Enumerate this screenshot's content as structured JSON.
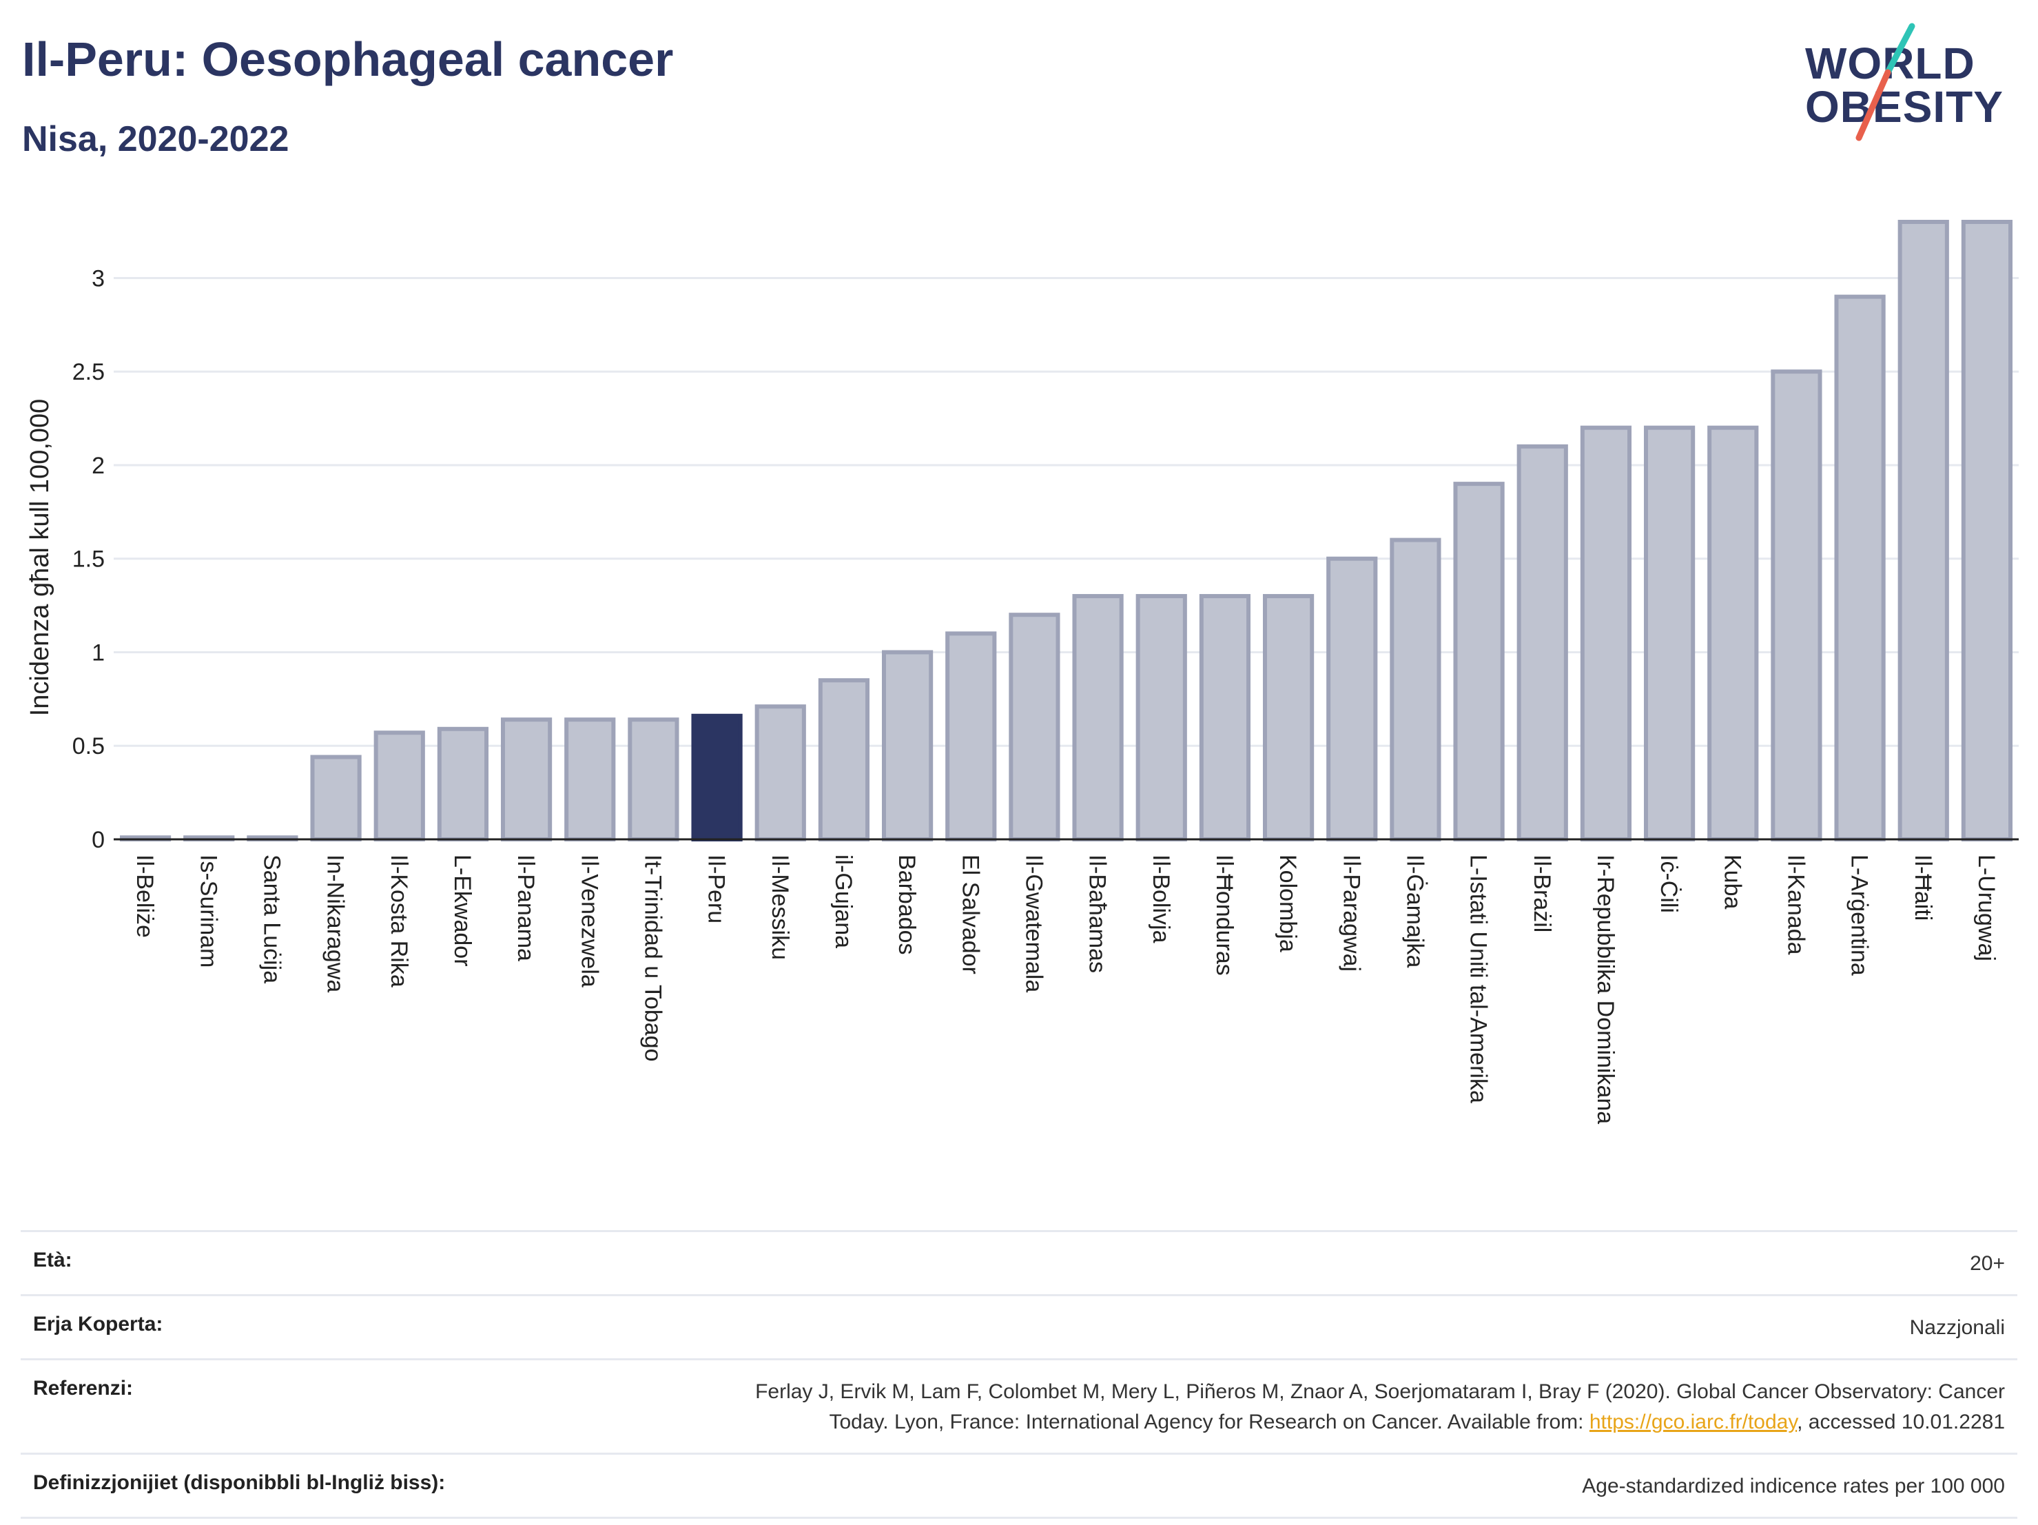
{
  "header": {
    "title": "Il-Peru: Oesophageal cancer",
    "subtitle": "Nisa, 2020-2022"
  },
  "logo": {
    "line1": "WORLD",
    "line2": "OBESITY",
    "colors": {
      "text": "#2b3562",
      "slash_teal": "#2ec4b6",
      "slash_red": "#e8604c"
    }
  },
  "colors": {
    "highlight": "#2b3562",
    "bar_fill": "#bfc3d0",
    "bar_stroke": "#9ea3b8",
    "grid": "#e6e9ef",
    "axis": "#222222"
  },
  "chart_data": {
    "type": "bar",
    "ylabel": "Incidenza għal kull 100,000",
    "ylim": [
      0,
      3.3
    ],
    "yticks": [
      0,
      0.5,
      1,
      1.5,
      2,
      2.5,
      3
    ],
    "ytick_labels": [
      "0",
      "0.5",
      "1",
      "1.5",
      "2",
      "2.5",
      "3"
    ],
    "grid": true,
    "highlight": "Il-Peru",
    "categories": [
      "Il-Beliże",
      "Is-Surinam",
      "Santa Luċija",
      "In-Nikaragwa",
      "Il-Kosta Rika",
      "L-Ekwador",
      "Il-Panama",
      "Il-Venezwela",
      "It-Trinidad u Tobago",
      "Il-Peru",
      "Il-Messiku",
      "il-Gujana",
      "Barbados",
      "El Salvador",
      "Il-Gwatemala",
      "Il-Baħamas",
      "Il-Bolivja",
      "Il-Ħonduras",
      "Kolombja",
      "Il-Paragwaj",
      "Il-Ġamajka",
      "L-Istati Uniti tal-Amerika",
      "Il-Brażil",
      "Ir-Repubblika Dominikana",
      "Iċ-Ċili",
      "Kuba",
      "Il-Kanada",
      "L-Arġentina",
      "Il-Ħaiti",
      "L-Urugwaj"
    ],
    "values": [
      0.01,
      0.01,
      0.01,
      0.44,
      0.57,
      0.59,
      0.64,
      0.64,
      0.64,
      0.66,
      0.71,
      0.85,
      1.0,
      1.1,
      1.2,
      1.3,
      1.3,
      1.3,
      1.3,
      1.5,
      1.6,
      1.9,
      2.1,
      2.2,
      2.2,
      2.2,
      2.5,
      2.9,
      3.3,
      3.3
    ]
  },
  "details": [
    {
      "key": "Età:",
      "value": "20+"
    },
    {
      "key": "Erja Koperta:",
      "value": "Nazzjonali"
    },
    {
      "key": "Referenzi:",
      "value_line1": "Ferlay J, Ervik M, Lam F, Colombet M, Mery L, Piñeros M, Znaor A, Soerjomataram I, Bray F (2020). Global Cancer Observatory: Cancer",
      "value_line2_pre": "Today. Lyon, France: International Agency for Research on Cancer. Available from: ",
      "link": "https://gco.iarc.fr/today",
      "value_line2_post": ", accessed 10.01.2281"
    },
    {
      "key": "Definizzjonijiet (disponibbli bl-Ingliż biss):",
      "value": "Age-standardized indicence rates per 100 000"
    }
  ]
}
